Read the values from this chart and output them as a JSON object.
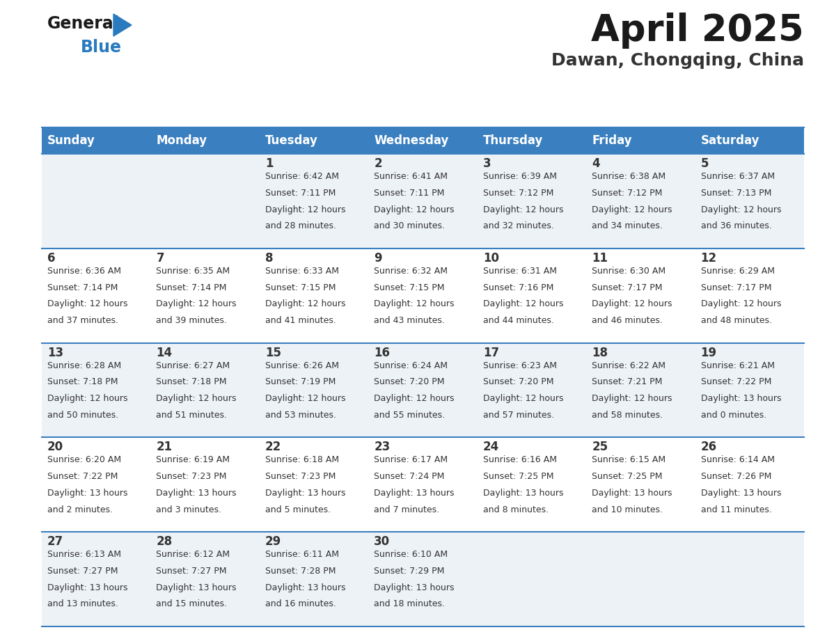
{
  "title": "April 2025",
  "subtitle": "Dawan, Chongqing, China",
  "header_bg": "#3a7fbf",
  "header_text": "#ffffff",
  "row_bg_light": "#edf2f7",
  "row_bg_white": "#ffffff",
  "days_of_week": [
    "Sunday",
    "Monday",
    "Tuesday",
    "Wednesday",
    "Thursday",
    "Friday",
    "Saturday"
  ],
  "weeks": [
    [
      {
        "day": "",
        "sunrise": "",
        "sunset": "",
        "daylight1": "",
        "daylight2": ""
      },
      {
        "day": "",
        "sunrise": "",
        "sunset": "",
        "daylight1": "",
        "daylight2": ""
      },
      {
        "day": "1",
        "sunrise": "Sunrise: 6:42 AM",
        "sunset": "Sunset: 7:11 PM",
        "daylight1": "Daylight: 12 hours",
        "daylight2": "and 28 minutes."
      },
      {
        "day": "2",
        "sunrise": "Sunrise: 6:41 AM",
        "sunset": "Sunset: 7:11 PM",
        "daylight1": "Daylight: 12 hours",
        "daylight2": "and 30 minutes."
      },
      {
        "day": "3",
        "sunrise": "Sunrise: 6:39 AM",
        "sunset": "Sunset: 7:12 PM",
        "daylight1": "Daylight: 12 hours",
        "daylight2": "and 32 minutes."
      },
      {
        "day": "4",
        "sunrise": "Sunrise: 6:38 AM",
        "sunset": "Sunset: 7:12 PM",
        "daylight1": "Daylight: 12 hours",
        "daylight2": "and 34 minutes."
      },
      {
        "day": "5",
        "sunrise": "Sunrise: 6:37 AM",
        "sunset": "Sunset: 7:13 PM",
        "daylight1": "Daylight: 12 hours",
        "daylight2": "and 36 minutes."
      }
    ],
    [
      {
        "day": "6",
        "sunrise": "Sunrise: 6:36 AM",
        "sunset": "Sunset: 7:14 PM",
        "daylight1": "Daylight: 12 hours",
        "daylight2": "and 37 minutes."
      },
      {
        "day": "7",
        "sunrise": "Sunrise: 6:35 AM",
        "sunset": "Sunset: 7:14 PM",
        "daylight1": "Daylight: 12 hours",
        "daylight2": "and 39 minutes."
      },
      {
        "day": "8",
        "sunrise": "Sunrise: 6:33 AM",
        "sunset": "Sunset: 7:15 PM",
        "daylight1": "Daylight: 12 hours",
        "daylight2": "and 41 minutes."
      },
      {
        "day": "9",
        "sunrise": "Sunrise: 6:32 AM",
        "sunset": "Sunset: 7:15 PM",
        "daylight1": "Daylight: 12 hours",
        "daylight2": "and 43 minutes."
      },
      {
        "day": "10",
        "sunrise": "Sunrise: 6:31 AM",
        "sunset": "Sunset: 7:16 PM",
        "daylight1": "Daylight: 12 hours",
        "daylight2": "and 44 minutes."
      },
      {
        "day": "11",
        "sunrise": "Sunrise: 6:30 AM",
        "sunset": "Sunset: 7:17 PM",
        "daylight1": "Daylight: 12 hours",
        "daylight2": "and 46 minutes."
      },
      {
        "day": "12",
        "sunrise": "Sunrise: 6:29 AM",
        "sunset": "Sunset: 7:17 PM",
        "daylight1": "Daylight: 12 hours",
        "daylight2": "and 48 minutes."
      }
    ],
    [
      {
        "day": "13",
        "sunrise": "Sunrise: 6:28 AM",
        "sunset": "Sunset: 7:18 PM",
        "daylight1": "Daylight: 12 hours",
        "daylight2": "and 50 minutes."
      },
      {
        "day": "14",
        "sunrise": "Sunrise: 6:27 AM",
        "sunset": "Sunset: 7:18 PM",
        "daylight1": "Daylight: 12 hours",
        "daylight2": "and 51 minutes."
      },
      {
        "day": "15",
        "sunrise": "Sunrise: 6:26 AM",
        "sunset": "Sunset: 7:19 PM",
        "daylight1": "Daylight: 12 hours",
        "daylight2": "and 53 minutes."
      },
      {
        "day": "16",
        "sunrise": "Sunrise: 6:24 AM",
        "sunset": "Sunset: 7:20 PM",
        "daylight1": "Daylight: 12 hours",
        "daylight2": "and 55 minutes."
      },
      {
        "day": "17",
        "sunrise": "Sunrise: 6:23 AM",
        "sunset": "Sunset: 7:20 PM",
        "daylight1": "Daylight: 12 hours",
        "daylight2": "and 57 minutes."
      },
      {
        "day": "18",
        "sunrise": "Sunrise: 6:22 AM",
        "sunset": "Sunset: 7:21 PM",
        "daylight1": "Daylight: 12 hours",
        "daylight2": "and 58 minutes."
      },
      {
        "day": "19",
        "sunrise": "Sunrise: 6:21 AM",
        "sunset": "Sunset: 7:22 PM",
        "daylight1": "Daylight: 13 hours",
        "daylight2": "and 0 minutes."
      }
    ],
    [
      {
        "day": "20",
        "sunrise": "Sunrise: 6:20 AM",
        "sunset": "Sunset: 7:22 PM",
        "daylight1": "Daylight: 13 hours",
        "daylight2": "and 2 minutes."
      },
      {
        "day": "21",
        "sunrise": "Sunrise: 6:19 AM",
        "sunset": "Sunset: 7:23 PM",
        "daylight1": "Daylight: 13 hours",
        "daylight2": "and 3 minutes."
      },
      {
        "day": "22",
        "sunrise": "Sunrise: 6:18 AM",
        "sunset": "Sunset: 7:23 PM",
        "daylight1": "Daylight: 13 hours",
        "daylight2": "and 5 minutes."
      },
      {
        "day": "23",
        "sunrise": "Sunrise: 6:17 AM",
        "sunset": "Sunset: 7:24 PM",
        "daylight1": "Daylight: 13 hours",
        "daylight2": "and 7 minutes."
      },
      {
        "day": "24",
        "sunrise": "Sunrise: 6:16 AM",
        "sunset": "Sunset: 7:25 PM",
        "daylight1": "Daylight: 13 hours",
        "daylight2": "and 8 minutes."
      },
      {
        "day": "25",
        "sunrise": "Sunrise: 6:15 AM",
        "sunset": "Sunset: 7:25 PM",
        "daylight1": "Daylight: 13 hours",
        "daylight2": "and 10 minutes."
      },
      {
        "day": "26",
        "sunrise": "Sunrise: 6:14 AM",
        "sunset": "Sunset: 7:26 PM",
        "daylight1": "Daylight: 13 hours",
        "daylight2": "and 11 minutes."
      }
    ],
    [
      {
        "day": "27",
        "sunrise": "Sunrise: 6:13 AM",
        "sunset": "Sunset: 7:27 PM",
        "daylight1": "Daylight: 13 hours",
        "daylight2": "and 13 minutes."
      },
      {
        "day": "28",
        "sunrise": "Sunrise: 6:12 AM",
        "sunset": "Sunset: 7:27 PM",
        "daylight1": "Daylight: 13 hours",
        "daylight2": "and 15 minutes."
      },
      {
        "day": "29",
        "sunrise": "Sunrise: 6:11 AM",
        "sunset": "Sunset: 7:28 PM",
        "daylight1": "Daylight: 13 hours",
        "daylight2": "and 16 minutes."
      },
      {
        "day": "30",
        "sunrise": "Sunrise: 6:10 AM",
        "sunset": "Sunset: 7:29 PM",
        "daylight1": "Daylight: 13 hours",
        "daylight2": "and 18 minutes."
      },
      {
        "day": "",
        "sunrise": "",
        "sunset": "",
        "daylight1": "",
        "daylight2": ""
      },
      {
        "day": "",
        "sunrise": "",
        "sunset": "",
        "daylight1": "",
        "daylight2": ""
      },
      {
        "day": "",
        "sunrise": "",
        "sunset": "",
        "daylight1": "",
        "daylight2": ""
      }
    ]
  ],
  "logo_color_general": "#1a1a1a",
  "logo_color_blue": "#2a7abf",
  "logo_triangle_color": "#2a7abf",
  "cell_border_color": "#3a7fbf",
  "cell_text_color": "#333333",
  "title_color": "#1a1a1a",
  "subtitle_color": "#333333"
}
